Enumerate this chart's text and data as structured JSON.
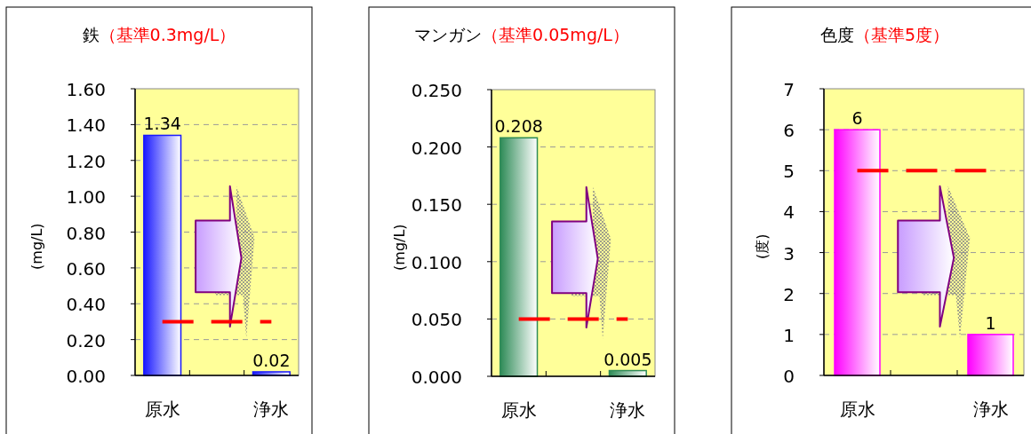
{
  "chart_data": [
    {
      "type": "bar",
      "title": "鉄",
      "subtitle": "（基準0.3mg/L）",
      "ylabel": "(mg/L)",
      "categories": [
        "原水",
        null,
        "浄水"
      ],
      "values": [
        1.34,
        null,
        0.02
      ],
      "color": "#1a1aff",
      "ylim": [
        0,
        1.6
      ],
      "yticks": [
        {
          "value": 0,
          "label": "0.00"
        },
        {
          "value": 0.2,
          "label": "0.20"
        },
        {
          "value": 0.4,
          "label": "0.40"
        },
        {
          "value": 0.6,
          "label": "0.60"
        },
        {
          "value": 0.8,
          "label": "0.80"
        },
        {
          "value": 1.0,
          "label": "1.00"
        },
        {
          "value": 1.2,
          "label": "1.20"
        },
        {
          "value": 1.4,
          "label": "1.40"
        },
        {
          "value": 1.6,
          "label": "1.60"
        }
      ],
      "grid": "y",
      "data_labels": true,
      "ref_lines": [
        {
          "axis": "y",
          "value": 0.3,
          "color": "#ff0000",
          "line_style": "dashed"
        }
      ]
    },
    {
      "type": "bar",
      "title": "マンガン",
      "subtitle": "（基準0.05mg/L）",
      "ylabel": "(mg/L)",
      "categories": [
        "原水",
        null,
        "浄水"
      ],
      "values": [
        0.208,
        null,
        0.005
      ],
      "color": "#2e8b57",
      "ylim": [
        0,
        0.25
      ],
      "yticks": [
        {
          "value": 0,
          "label": "0.000"
        },
        {
          "value": 0.05,
          "label": "0.050"
        },
        {
          "value": 0.1,
          "label": "0.100"
        },
        {
          "value": 0.15,
          "label": "0.150"
        },
        {
          "value": 0.2,
          "label": "0.200"
        },
        {
          "value": 0.25,
          "label": "0.250"
        }
      ],
      "grid": "y",
      "data_labels": true,
      "ref_lines": [
        {
          "axis": "y",
          "value": 0.05,
          "color": "#ff0000",
          "line_style": "dashed"
        }
      ]
    },
    {
      "type": "bar",
      "title": "色度",
      "subtitle": "（基準5度）",
      "ylabel": "(度)",
      "categories": [
        "原水",
        null,
        "浄水"
      ],
      "values": [
        6,
        null,
        1
      ],
      "color": "#ff00ff",
      "ylim": [
        0,
        7
      ],
      "yticks": [
        0,
        1,
        2,
        3,
        4,
        5,
        6,
        7
      ],
      "grid": "y",
      "data_labels": true,
      "ref_lines": [
        {
          "axis": "y",
          "value": 5,
          "color": "#ff0000",
          "line_style": "dashed"
        }
      ]
    }
  ]
}
